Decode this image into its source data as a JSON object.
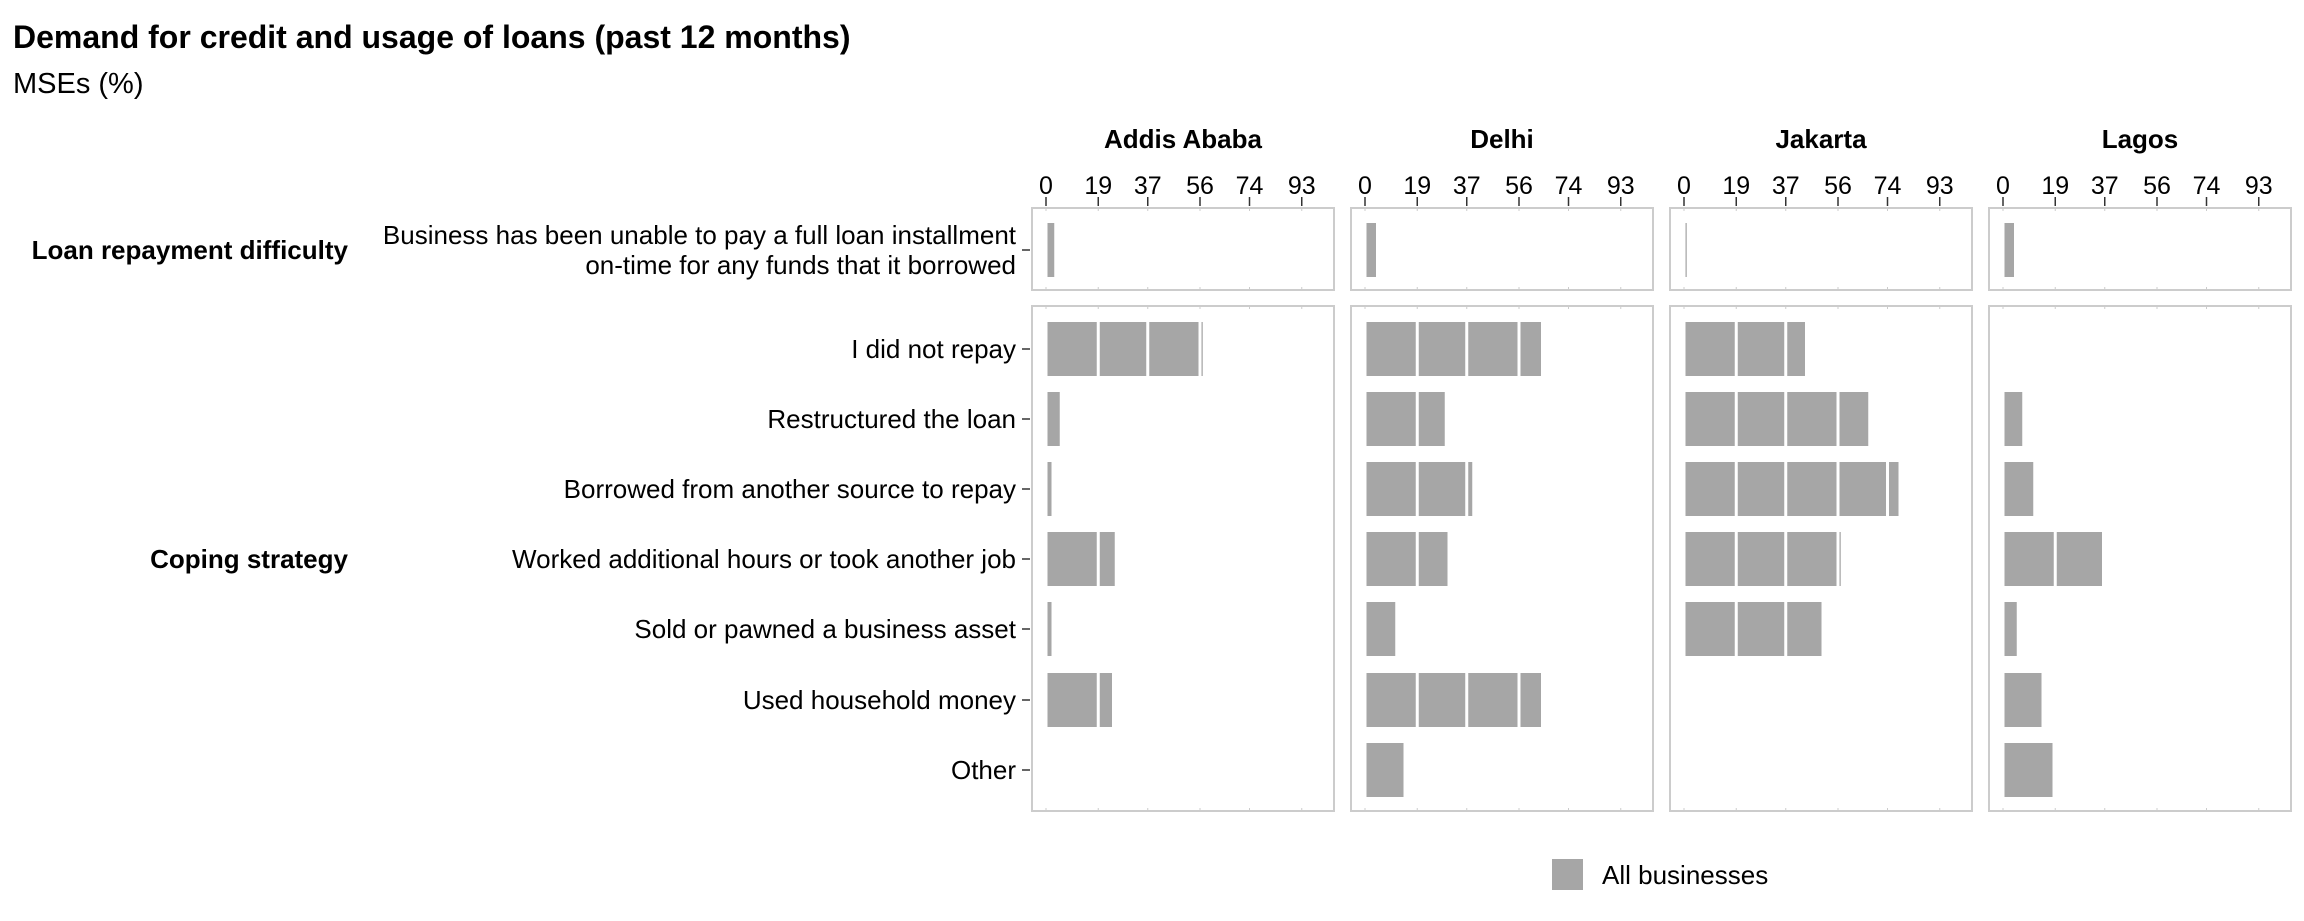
{
  "chart_data": {
    "type": "bar",
    "orientation": "horizontal",
    "title": "Demand for credit and usage of loans (past 12 months)",
    "subtitle": "MSEs (%)",
    "facets": [
      "Addis Ababa",
      "Delhi",
      "Jakarta",
      "Lagos"
    ],
    "xlim": [
      0,
      100
    ],
    "x_ticks": [
      0,
      19,
      37,
      56,
      74,
      93
    ],
    "x_tick_labels": [
      "0",
      "19",
      "37",
      "56",
      "74",
      "93"
    ],
    "grid": true,
    "legend": {
      "position": "bottom",
      "items": [
        {
          "label": "All businesses",
          "color": "#a6a6a6"
        }
      ]
    },
    "groups": [
      {
        "label": "Loan repayment difficulty",
        "categories": [
          {
            "label": "Business has been unable to pay a full loan installment\non-time for any funds that it borrowed",
            "values": {
              "Addis Ababa": 3,
              "Delhi": 4,
              "Jakarta": 1,
              "Lagos": 4
            }
          }
        ]
      },
      {
        "label": "Coping strategy",
        "categories": [
          {
            "label": "I did not repay",
            "values": {
              "Addis Ababa": 57,
              "Delhi": 64,
              "Jakarta": 44,
              "Lagos": null
            }
          },
          {
            "label": "Restructured the loan",
            "values": {
              "Addis Ababa": 5,
              "Delhi": 29,
              "Jakarta": 67,
              "Lagos": 7
            }
          },
          {
            "label": "Borrowed from another source to repay",
            "values": {
              "Addis Ababa": 2,
              "Delhi": 39,
              "Jakarta": 78,
              "Lagos": 11
            }
          },
          {
            "label": "Worked additional hours or took another job",
            "values": {
              "Addis Ababa": 25,
              "Delhi": 30,
              "Jakarta": 57,
              "Lagos": 36
            }
          },
          {
            "label": "Sold or pawned a business asset",
            "values": {
              "Addis Ababa": 2,
              "Delhi": 11,
              "Jakarta": 50,
              "Lagos": 5
            }
          },
          {
            "label": "Used household money",
            "values": {
              "Addis Ababa": 24,
              "Delhi": 64,
              "Jakarta": null,
              "Lagos": 14
            }
          },
          {
            "label": "Other",
            "values": {
              "Addis Ababa": null,
              "Delhi": 14,
              "Jakarta": null,
              "Lagos": 18
            }
          }
        ]
      }
    ],
    "colors": {
      "bar": "#a6a6a6",
      "panel_border": "#cccccc",
      "gridline": "#ffffff"
    }
  }
}
